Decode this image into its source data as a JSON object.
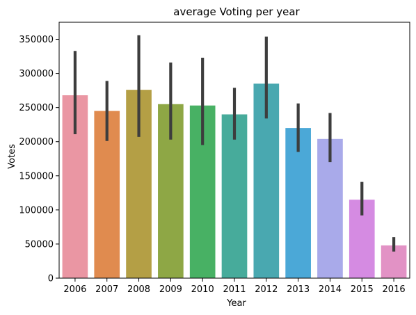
{
  "chart_data": {
    "type": "bar",
    "title": "average Voting per year",
    "xlabel": "Year",
    "ylabel": "Votes",
    "categories": [
      "2006",
      "2007",
      "2008",
      "2009",
      "2010",
      "2011",
      "2012",
      "2013",
      "2014",
      "2015",
      "2016"
    ],
    "values": [
      268000,
      245000,
      276000,
      255000,
      253000,
      240000,
      285000,
      220000,
      204000,
      115000,
      48000
    ],
    "error_low": [
      211000,
      201000,
      207000,
      203000,
      195000,
      203000,
      234000,
      185000,
      170000,
      92000,
      39000
    ],
    "error_high": [
      333000,
      289000,
      356000,
      316000,
      323000,
      279000,
      354000,
      256000,
      242000,
      141000,
      60000
    ],
    "colors": [
      "#ea96a3",
      "#e08b4f",
      "#b49f45",
      "#8ea745",
      "#48b164",
      "#47ab9b",
      "#49a8b0",
      "#4ba8d7",
      "#a9aaea",
      "#d58be2",
      "#e292c5"
    ],
    "yticks": [
      0,
      50000,
      100000,
      150000,
      200000,
      250000,
      300000,
      350000
    ],
    "ylim": [
      0,
      375000
    ],
    "grid": false,
    "error_bar_color": "#3d3d3d"
  }
}
